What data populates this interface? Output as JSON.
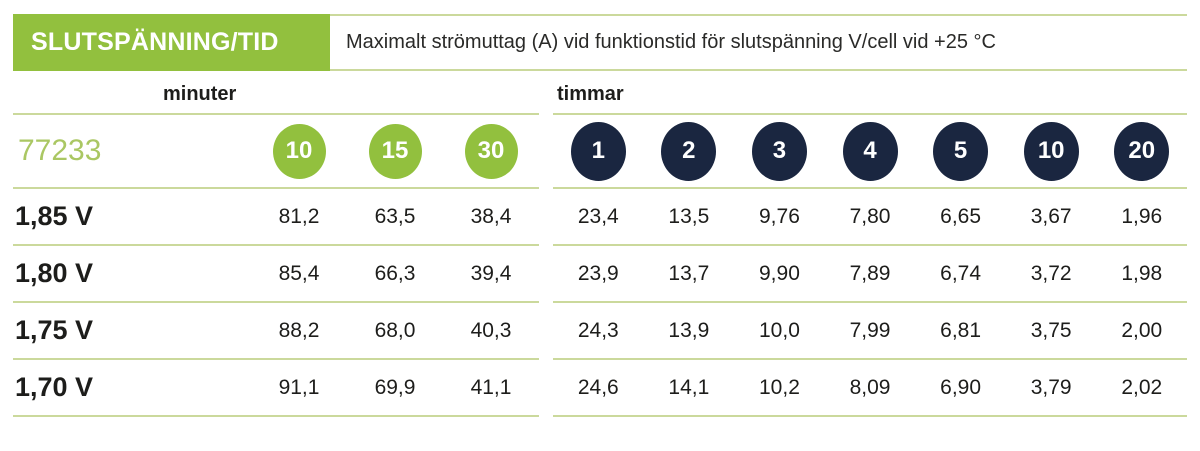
{
  "header": {
    "title": "SLUTSPÄNNING/TID",
    "description": "Maximalt strömuttag (A) vid funktionstid för slutspänning V/cell vid +25 °C"
  },
  "groups": {
    "minutes_label": "minuter",
    "hours_label": "timmar"
  },
  "product_code": "77233",
  "columns": {
    "minutes": [
      "10",
      "15",
      "30"
    ],
    "hours": [
      "1",
      "2",
      "3",
      "4",
      "5",
      "10",
      "20"
    ]
  },
  "rows": [
    {
      "label": "1,85 V",
      "minutes": [
        "81,2",
        "63,5",
        "38,4"
      ],
      "hours": [
        "23,4",
        "13,5",
        "9,76",
        "7,80",
        "6,65",
        "3,67",
        "1,96"
      ]
    },
    {
      "label": "1,80 V",
      "minutes": [
        "85,4",
        "66,3",
        "39,4"
      ],
      "hours": [
        "23,9",
        "13,7",
        "9,90",
        "7,89",
        "6,74",
        "3,72",
        "1,98"
      ]
    },
    {
      "label": "1,75 V",
      "minutes": [
        "88,2",
        "68,0",
        "40,3"
      ],
      "hours": [
        "24,3",
        "13,9",
        "10,0",
        "7,99",
        "6,81",
        "3,75",
        "2,00"
      ]
    },
    {
      "label": "1,70 V",
      "minutes": [
        "91,1",
        "69,9",
        "41,1"
      ],
      "hours": [
        "24,6",
        "14,1",
        "10,2",
        "8,09",
        "6,90",
        "3,79",
        "2,02"
      ]
    }
  ],
  "colors": {
    "green": "#92c03e",
    "light_green_line": "#cbd99c",
    "navy": "#1a2640",
    "text_dark": "#1d1d1b",
    "code_green": "#aac763"
  }
}
